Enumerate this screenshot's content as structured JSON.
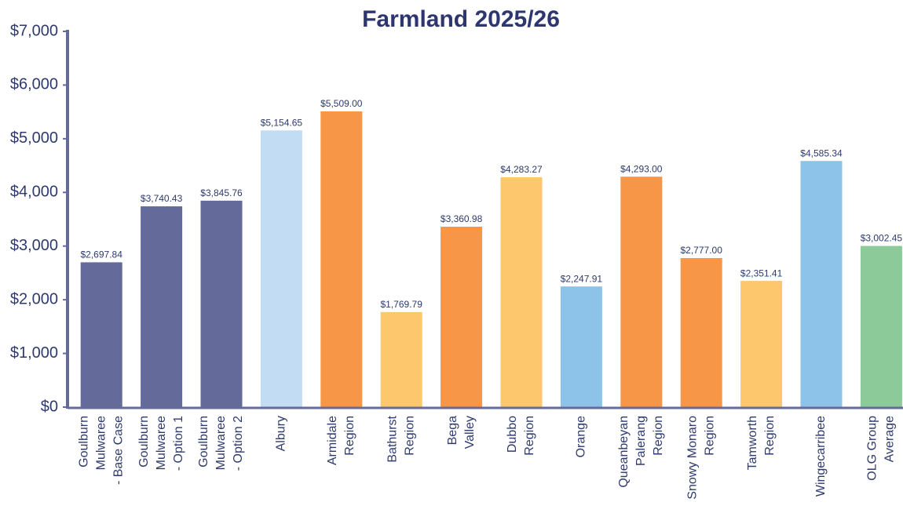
{
  "chart_data": {
    "type": "bar",
    "title": "Farmland 2025/26",
    "categories": [
      [
        "Goulburn",
        "Mulwaree",
        "- Base Case"
      ],
      [
        "Goulburn",
        "Mulwaree",
        "- Option 1"
      ],
      [
        "Goulburn",
        "Mulwaree",
        "- Option 2"
      ],
      [
        "Albury"
      ],
      [
        "Armidale",
        "Region"
      ],
      [
        "Bathurst",
        "Region"
      ],
      [
        "Bega",
        "Valley"
      ],
      [
        "Dubbo",
        "Region"
      ],
      [
        "Orange"
      ],
      [
        "Queanbeyan",
        "Palerang",
        "Region"
      ],
      [
        "Snowy Monaro",
        "Region"
      ],
      [
        "Tamworth",
        "Region"
      ],
      [
        "Wingecarribee"
      ],
      [
        "OLG Group",
        "Average"
      ]
    ],
    "values": [
      2697.84,
      3740.43,
      3845.76,
      5154.65,
      5509.0,
      1769.79,
      3360.98,
      4283.27,
      2247.91,
      4293.0,
      2777.0,
      2351.41,
      4585.34,
      3002.45
    ],
    "value_labels": [
      "$2,697.84",
      "$3,740.43",
      "$3,845.76",
      "$5,154.65",
      "$5,509.00",
      "$1,769.79",
      "$3,360.98",
      "$4,283.27",
      "$2,247.91",
      "$4,293.00",
      "$2,777.00",
      "$2,351.41",
      "$4,585.34",
      "$3,002.45"
    ],
    "colors": [
      "#646a9a",
      "#646a9a",
      "#646a9a",
      "#c1dcf3",
      "#f79646",
      "#fdc76e",
      "#f79646",
      "#fdc76e",
      "#8dc3e9",
      "#f79646",
      "#f79646",
      "#fdc76e",
      "#8dc3e9",
      "#8cca9a"
    ],
    "ylim": [
      0,
      7000
    ],
    "yticks": [
      {
        "value": 0,
        "label": "$0"
      },
      {
        "value": 1000,
        "label": "$1,000"
      },
      {
        "value": 2000,
        "label": "$2,000"
      },
      {
        "value": 3000,
        "label": "$3,000"
      },
      {
        "value": 4000,
        "label": "$4,000"
      },
      {
        "value": 5000,
        "label": "$5,000"
      },
      {
        "value": 6000,
        "label": "$6,000"
      },
      {
        "value": 7000,
        "label": "$7,000"
      }
    ],
    "grid": false
  }
}
